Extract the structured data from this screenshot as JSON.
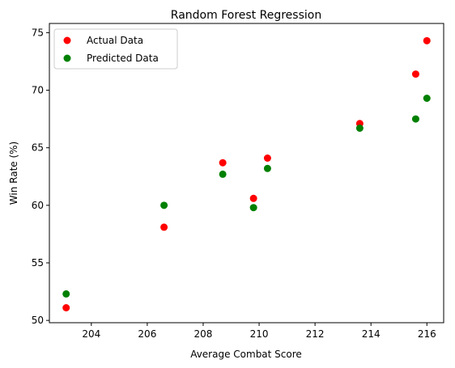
{
  "chart_data": {
    "type": "scatter",
    "title": "Random Forest Regression",
    "xlabel": "Average Combat Score",
    "ylabel": "Win Rate (%)",
    "xlim": [
      202.5,
      216.6
    ],
    "ylim": [
      49.8,
      75.8
    ],
    "xticks": [
      204,
      206,
      208,
      210,
      212,
      214,
      216
    ],
    "yticks": [
      50,
      55,
      60,
      65,
      70,
      75
    ],
    "grid": false,
    "legend_position": "top-left",
    "series": [
      {
        "name": "Actual Data",
        "color": "#ff0000",
        "x": [
          203.1,
          206.6,
          208.7,
          209.8,
          210.3,
          213.6,
          215.6,
          216.0
        ],
        "y": [
          51.1,
          58.1,
          63.7,
          60.6,
          64.1,
          67.1,
          71.4,
          74.3
        ]
      },
      {
        "name": "Predicted Data",
        "color": "#008000",
        "x": [
          203.1,
          206.6,
          208.7,
          209.8,
          210.3,
          213.6,
          215.6,
          216.0
        ],
        "y": [
          52.3,
          60.0,
          62.7,
          59.8,
          63.2,
          66.7,
          67.5,
          69.3
        ]
      }
    ]
  }
}
